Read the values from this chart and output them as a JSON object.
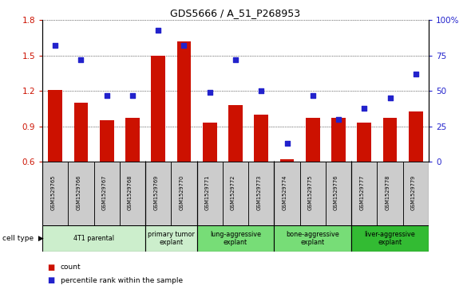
{
  "title": "GDS5666 / A_51_P268953",
  "samples": [
    "GSM1529765",
    "GSM1529766",
    "GSM1529767",
    "GSM1529768",
    "GSM1529769",
    "GSM1529770",
    "GSM1529771",
    "GSM1529772",
    "GSM1529773",
    "GSM1529774",
    "GSM1529775",
    "GSM1529776",
    "GSM1529777",
    "GSM1529778",
    "GSM1529779"
  ],
  "bar_values": [
    1.21,
    1.1,
    0.95,
    0.97,
    1.5,
    1.62,
    0.93,
    1.08,
    1.0,
    0.62,
    0.97,
    0.97,
    0.93,
    0.97,
    1.03
  ],
  "percentile_values": [
    82,
    72,
    47,
    47,
    93,
    82,
    49,
    72,
    50,
    13,
    47,
    30,
    38,
    45,
    62
  ],
  "ylim_left": [
    0.6,
    1.8
  ],
  "ylim_right": [
    0,
    100
  ],
  "yticks_left": [
    0.6,
    0.9,
    1.2,
    1.5,
    1.8
  ],
  "yticks_right": [
    0,
    25,
    50,
    75,
    100
  ],
  "ytick_labels_right": [
    "0",
    "25",
    "50",
    "75",
    "100%"
  ],
  "bar_color": "#cc1100",
  "dot_color": "#2222cc",
  "cell_groups": [
    {
      "label": "4T1 parental",
      "indices": [
        0,
        1,
        2,
        3
      ],
      "color": "#cceecc"
    },
    {
      "label": "primary tumor\nexplant",
      "indices": [
        4,
        5
      ],
      "color": "#cceecc"
    },
    {
      "label": "lung-aggressive\nexplant",
      "indices": [
        6,
        7,
        8
      ],
      "color": "#77dd77"
    },
    {
      "label": "bone-aggressive\nexplant",
      "indices": [
        9,
        10,
        11
      ],
      "color": "#77dd77"
    },
    {
      "label": "liver-aggressive\nexplant",
      "indices": [
        12,
        13,
        14
      ],
      "color": "#33bb33"
    }
  ],
  "sample_box_color": "#cccccc",
  "bar_width": 0.55
}
